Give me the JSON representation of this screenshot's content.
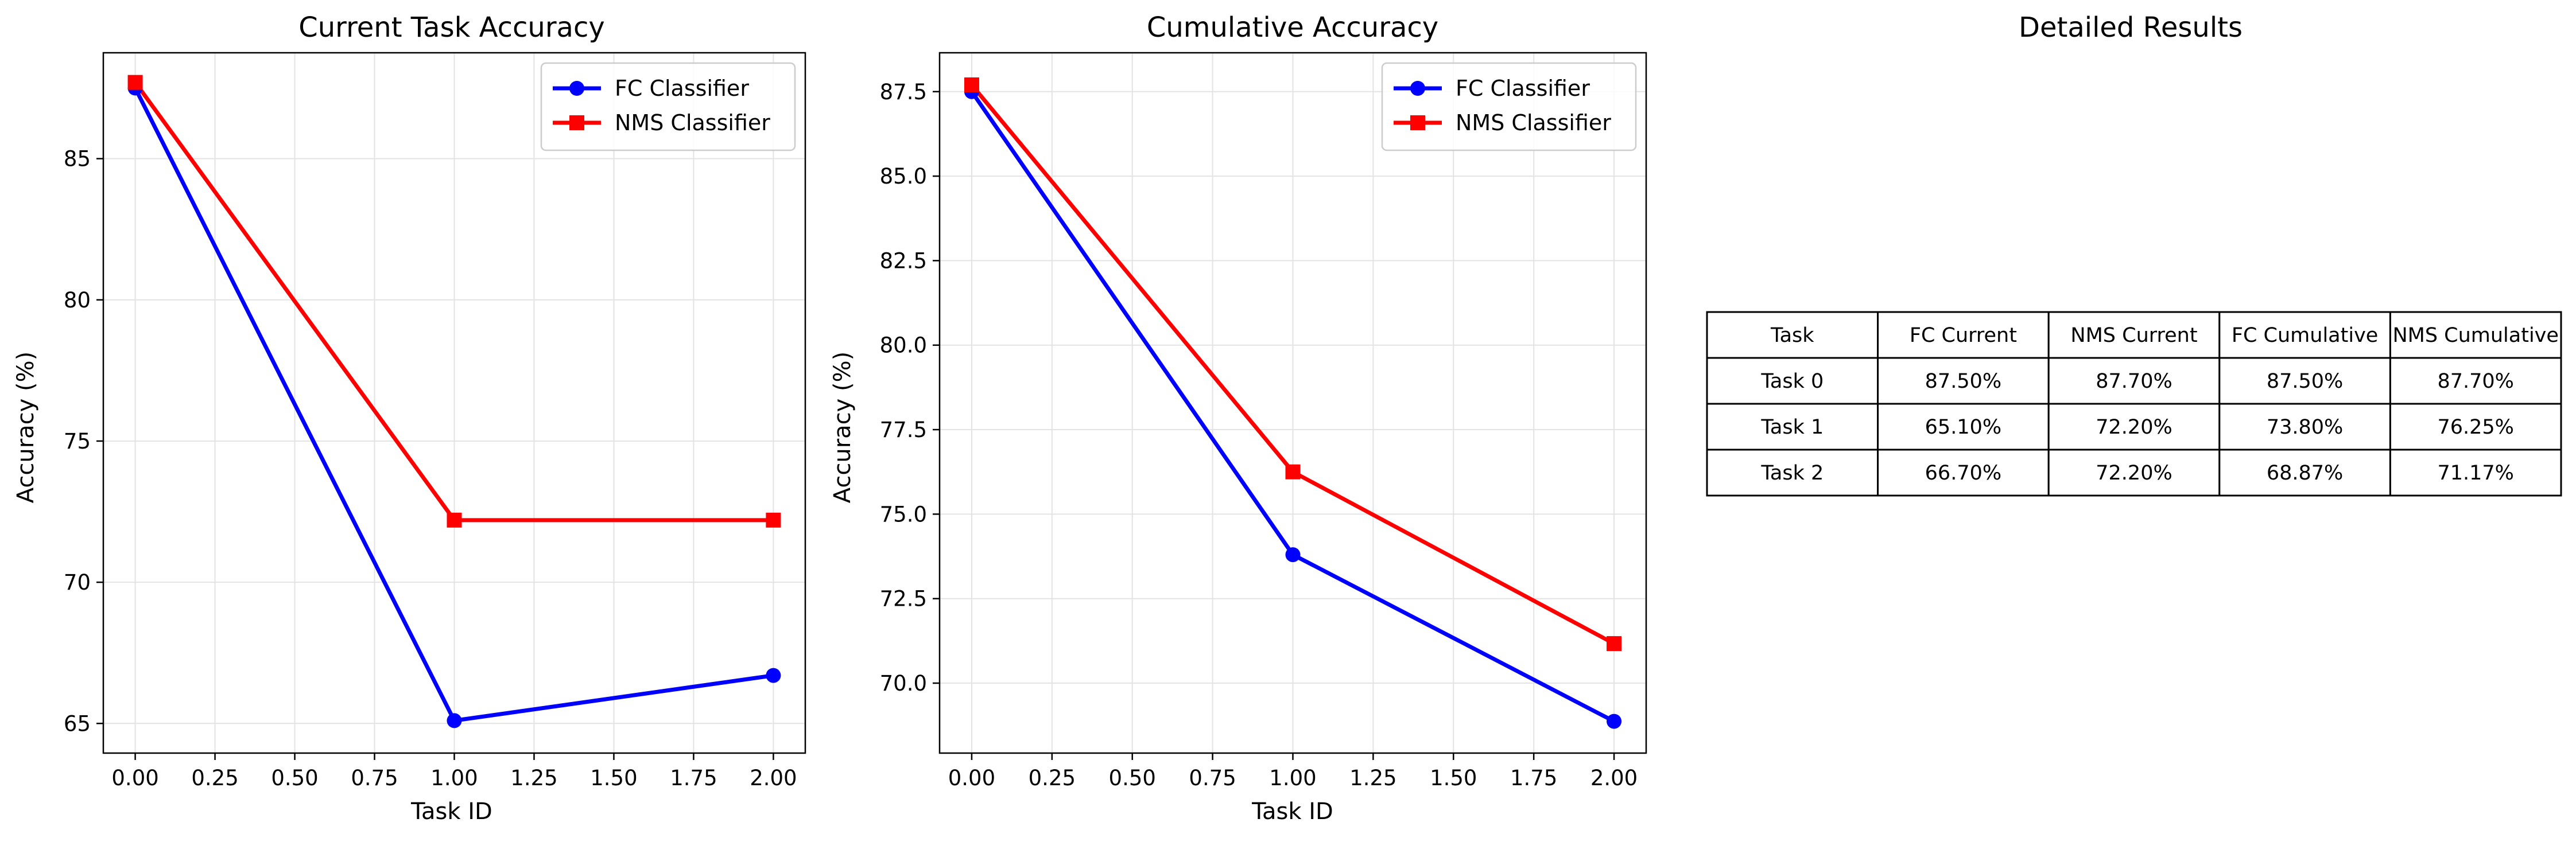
{
  "colors": {
    "fc": "#0000ff",
    "nms": "#ff0000",
    "grid": "#e3e3e3",
    "legend_border": "#cccccc"
  },
  "chart_data": [
    {
      "type": "line",
      "title": "Current Task Accuracy",
      "xlabel": "Task ID",
      "ylabel": "Accuracy (%)",
      "xlim": [
        -0.1,
        2.1
      ],
      "ylim": [
        63.95,
        88.75
      ],
      "grid": true,
      "legend": "top-right",
      "x": [
        0,
        1,
        2
      ],
      "xticks": [
        0.0,
        0.25,
        0.5,
        0.75,
        1.0,
        1.25,
        1.5,
        1.75,
        2.0
      ],
      "xtick_labels": [
        "0.00",
        "0.25",
        "0.50",
        "0.75",
        "1.00",
        "1.25",
        "1.50",
        "1.75",
        "2.00"
      ],
      "yticks": [
        65,
        70,
        75,
        80,
        85
      ],
      "ytick_labels": [
        "65",
        "70",
        "75",
        "80",
        "85"
      ],
      "series": [
        {
          "name": "FC Classifier",
          "marker": "circle",
          "values": [
            87.5,
            65.1,
            66.7
          ]
        },
        {
          "name": "NMS Classifier",
          "marker": "square",
          "values": [
            87.7,
            72.2,
            72.2
          ]
        }
      ]
    },
    {
      "type": "line",
      "title": "Cumulative Accuracy",
      "xlabel": "Task ID",
      "ylabel": "Accuracy (%)",
      "xlim": [
        -0.1,
        2.1
      ],
      "ylim": [
        67.93,
        88.65
      ],
      "grid": true,
      "legend": "top-right",
      "x": [
        0,
        1,
        2
      ],
      "xticks": [
        0.0,
        0.25,
        0.5,
        0.75,
        1.0,
        1.25,
        1.5,
        1.75,
        2.0
      ],
      "xtick_labels": [
        "0.00",
        "0.25",
        "0.50",
        "0.75",
        "1.00",
        "1.25",
        "1.50",
        "1.75",
        "2.00"
      ],
      "yticks": [
        70.0,
        72.5,
        75.0,
        77.5,
        80.0,
        82.5,
        85.0,
        87.5
      ],
      "ytick_labels": [
        "70.0",
        "72.5",
        "75.0",
        "77.5",
        "80.0",
        "82.5",
        "85.0",
        "87.5"
      ],
      "series": [
        {
          "name": "FC Classifier",
          "marker": "circle",
          "values": [
            87.5,
            73.8,
            68.87
          ]
        },
        {
          "name": "NMS Classifier",
          "marker": "square",
          "values": [
            87.7,
            76.25,
            71.17
          ]
        }
      ]
    },
    {
      "type": "table",
      "title": "Detailed Results",
      "columns": [
        "Task",
        "FC Current",
        "NMS Current",
        "FC Cumulative",
        "NMS Cumulative"
      ],
      "rows": [
        [
          "Task 0",
          "87.50%",
          "87.70%",
          "87.50%",
          "87.70%"
        ],
        [
          "Task 1",
          "65.10%",
          "72.20%",
          "73.80%",
          "76.25%"
        ],
        [
          "Task 2",
          "66.70%",
          "72.20%",
          "68.87%",
          "71.17%"
        ]
      ]
    }
  ]
}
